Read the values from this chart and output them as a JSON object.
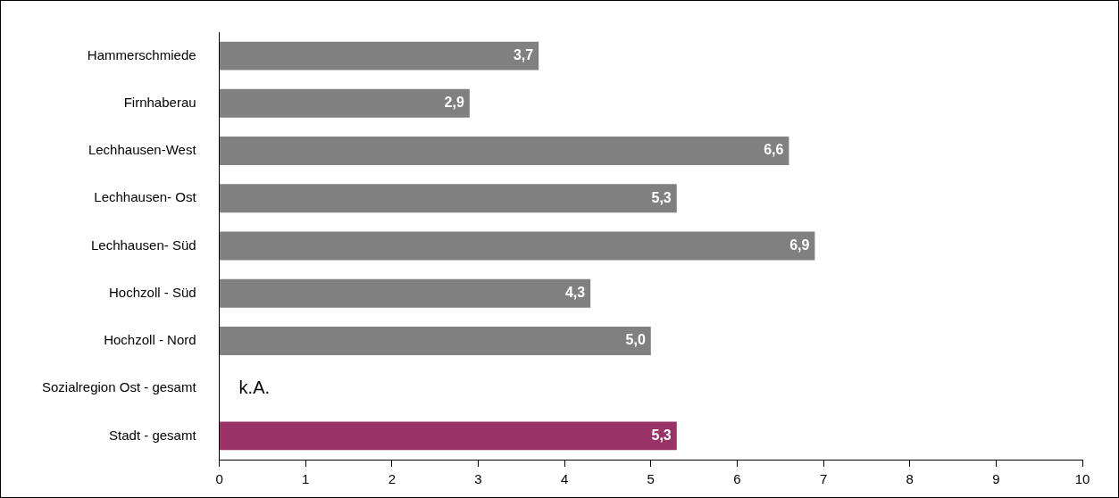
{
  "chart_data": {
    "type": "bar",
    "orientation": "horizontal",
    "categories": [
      "Hammerschmiede",
      "Firnhaberau",
      "Lechhausen-West",
      "Lechhausen- Ost",
      "Lechhausen- Süd",
      "Hochzoll - Süd",
      "Hochzoll - Nord",
      "Sozialregion Ost - gesamt",
      "Stadt - gesamt"
    ],
    "values": [
      3.7,
      2.9,
      6.6,
      5.3,
      6.9,
      4.3,
      5.0,
      null,
      5.3
    ],
    "colors": [
      "#808080",
      "#808080",
      "#808080",
      "#808080",
      "#808080",
      "#808080",
      "#808080",
      "#808080",
      "#993366"
    ],
    "value_labels": [
      "3,7",
      "2,9",
      "6,6",
      "5,3",
      "6,9",
      "4,3",
      "5,0",
      "k.A.",
      "5,3"
    ],
    "xlim": [
      0,
      10
    ],
    "xticks": [
      0,
      1,
      2,
      3,
      4,
      5,
      6,
      7,
      8,
      9,
      10
    ],
    "grid": false,
    "legend": false
  }
}
